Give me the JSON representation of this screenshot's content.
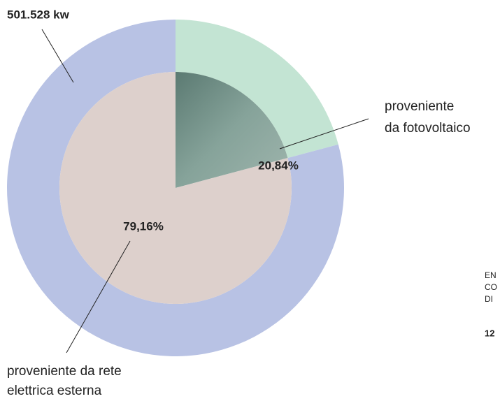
{
  "chart_data": {
    "type": "donut",
    "annotation": "501.528 kw",
    "categories": [
      [
        "proveniente",
        "da fotovoltaico"
      ],
      [
        "proveniente da rete",
        "elettrica esterna"
      ]
    ],
    "values": [
      20.84,
      79.16
    ],
    "value_labels": [
      "20,84%",
      "79,16%"
    ],
    "outer_colors": [
      "#c3e4d3",
      "#b8c2e4"
    ],
    "inner_colors": [
      "#6f8c83",
      "#ddd0cc"
    ],
    "side_text": [
      "EN",
      "CO",
      "DI",
      "12"
    ]
  }
}
